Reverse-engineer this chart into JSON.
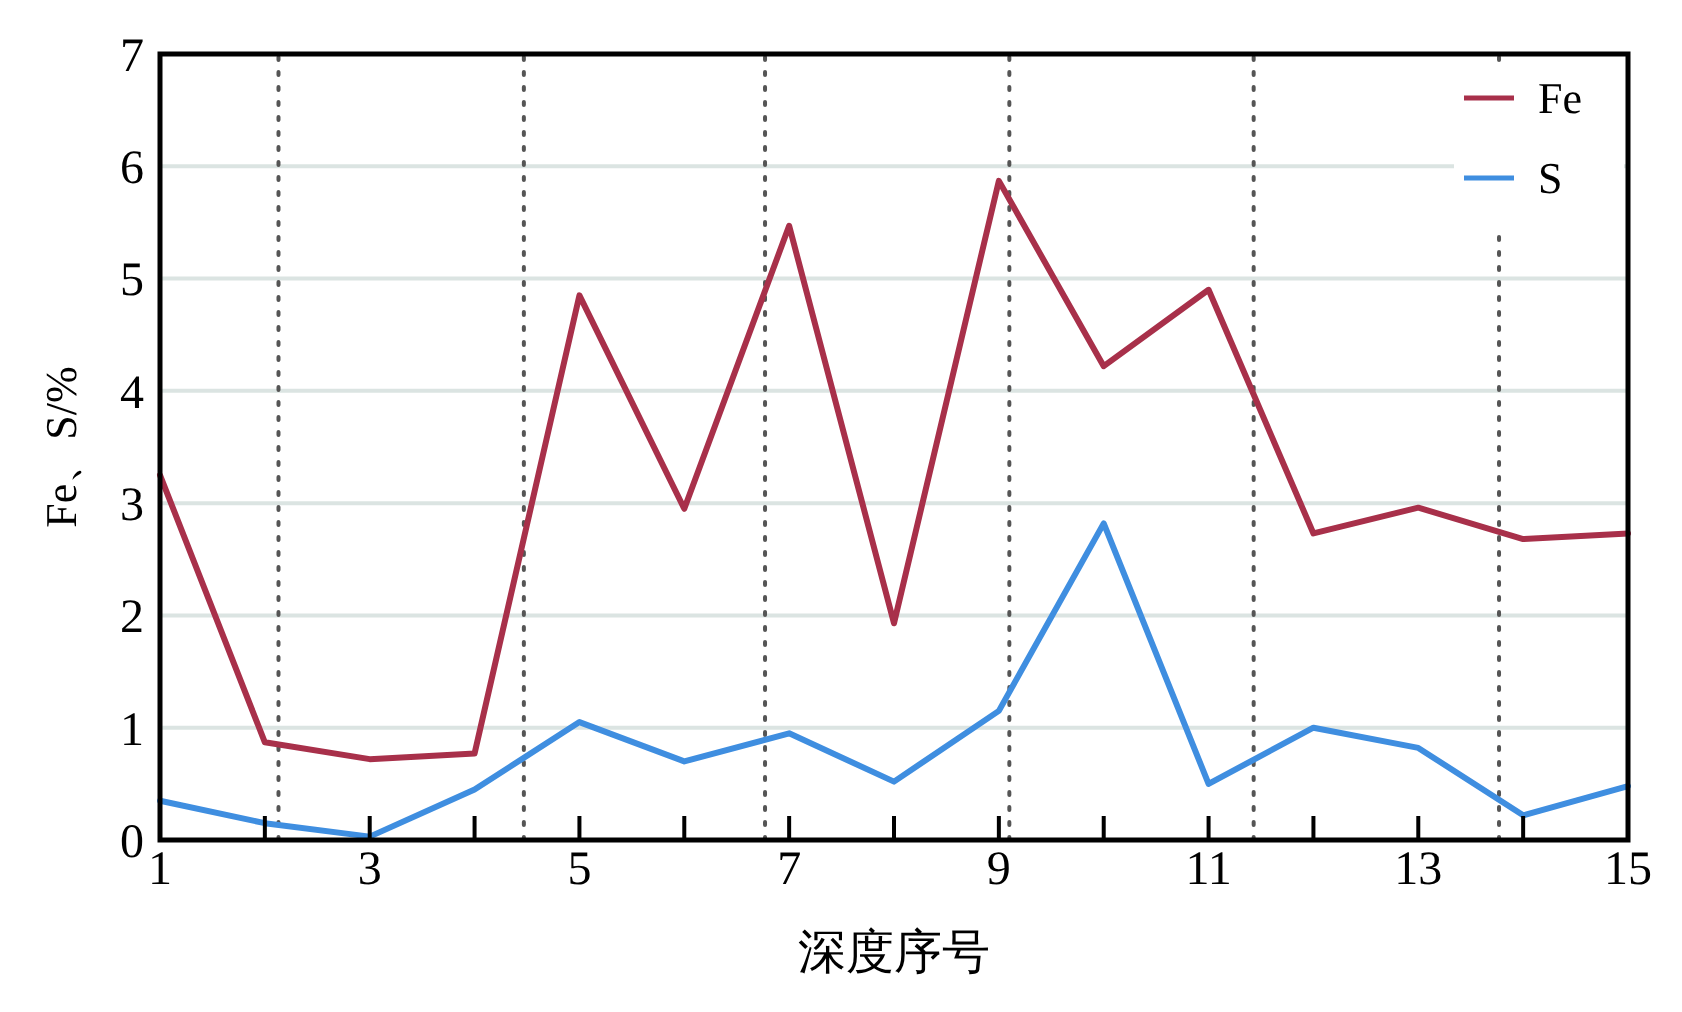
{
  "chart_data": {
    "type": "line",
    "xlabel": "深度序号",
    "ylabel": "Fe、S/%",
    "x": [
      1,
      2,
      3,
      4,
      5,
      6,
      7,
      8,
      9,
      10,
      11,
      12,
      13,
      14,
      15
    ],
    "series": [
      {
        "name": "Fe",
        "color": "#a8304a",
        "values": [
          3.25,
          0.87,
          0.72,
          0.77,
          4.85,
          2.95,
          5.47,
          1.93,
          5.87,
          4.22,
          4.9,
          2.73,
          2.96,
          2.68,
          2.73
        ]
      },
      {
        "name": "S",
        "color": "#3f8ee0",
        "values": [
          0.35,
          0.15,
          0.03,
          0.45,
          1.05,
          0.7,
          0.95,
          0.52,
          1.15,
          2.82,
          0.5,
          1.0,
          0.82,
          0.22,
          0.48
        ]
      }
    ],
    "xlim": [
      1,
      15
    ],
    "xticks": [
      1,
      {
        "value": 2,
        "label": null
      },
      3,
      {
        "value": 4,
        "label": null
      },
      5,
      {
        "value": 6,
        "label": null
      },
      7,
      {
        "value": 8,
        "label": null
      },
      9,
      {
        "value": 10,
        "label": null
      },
      11,
      {
        "value": 12,
        "label": null
      },
      13,
      {
        "value": 14,
        "label": null
      },
      15
    ],
    "ylim": [
      0,
      7
    ],
    "yticks": [
      0,
      1,
      2,
      3,
      4,
      5,
      6,
      7
    ],
    "grid": "y",
    "legend": "top right",
    "marker": "none",
    "line_style": "solid",
    "ref_lines": [
      {
        "axis": "x",
        "value": 2.13,
        "color": "#555555",
        "line_style": "dotted"
      },
      {
        "axis": "x",
        "value": 4.47,
        "color": "#555555",
        "line_style": "dotted"
      },
      {
        "axis": "x",
        "value": 6.77,
        "color": "#555555",
        "line_style": "dotted"
      },
      {
        "axis": "x",
        "value": 9.1,
        "color": "#555555",
        "line_style": "dotted"
      },
      {
        "axis": "x",
        "value": 11.43,
        "color": "#555555",
        "line_style": "dotted"
      },
      {
        "axis": "x",
        "value": 13.77,
        "color": "#555555",
        "line_style": "dotted"
      }
    ]
  }
}
